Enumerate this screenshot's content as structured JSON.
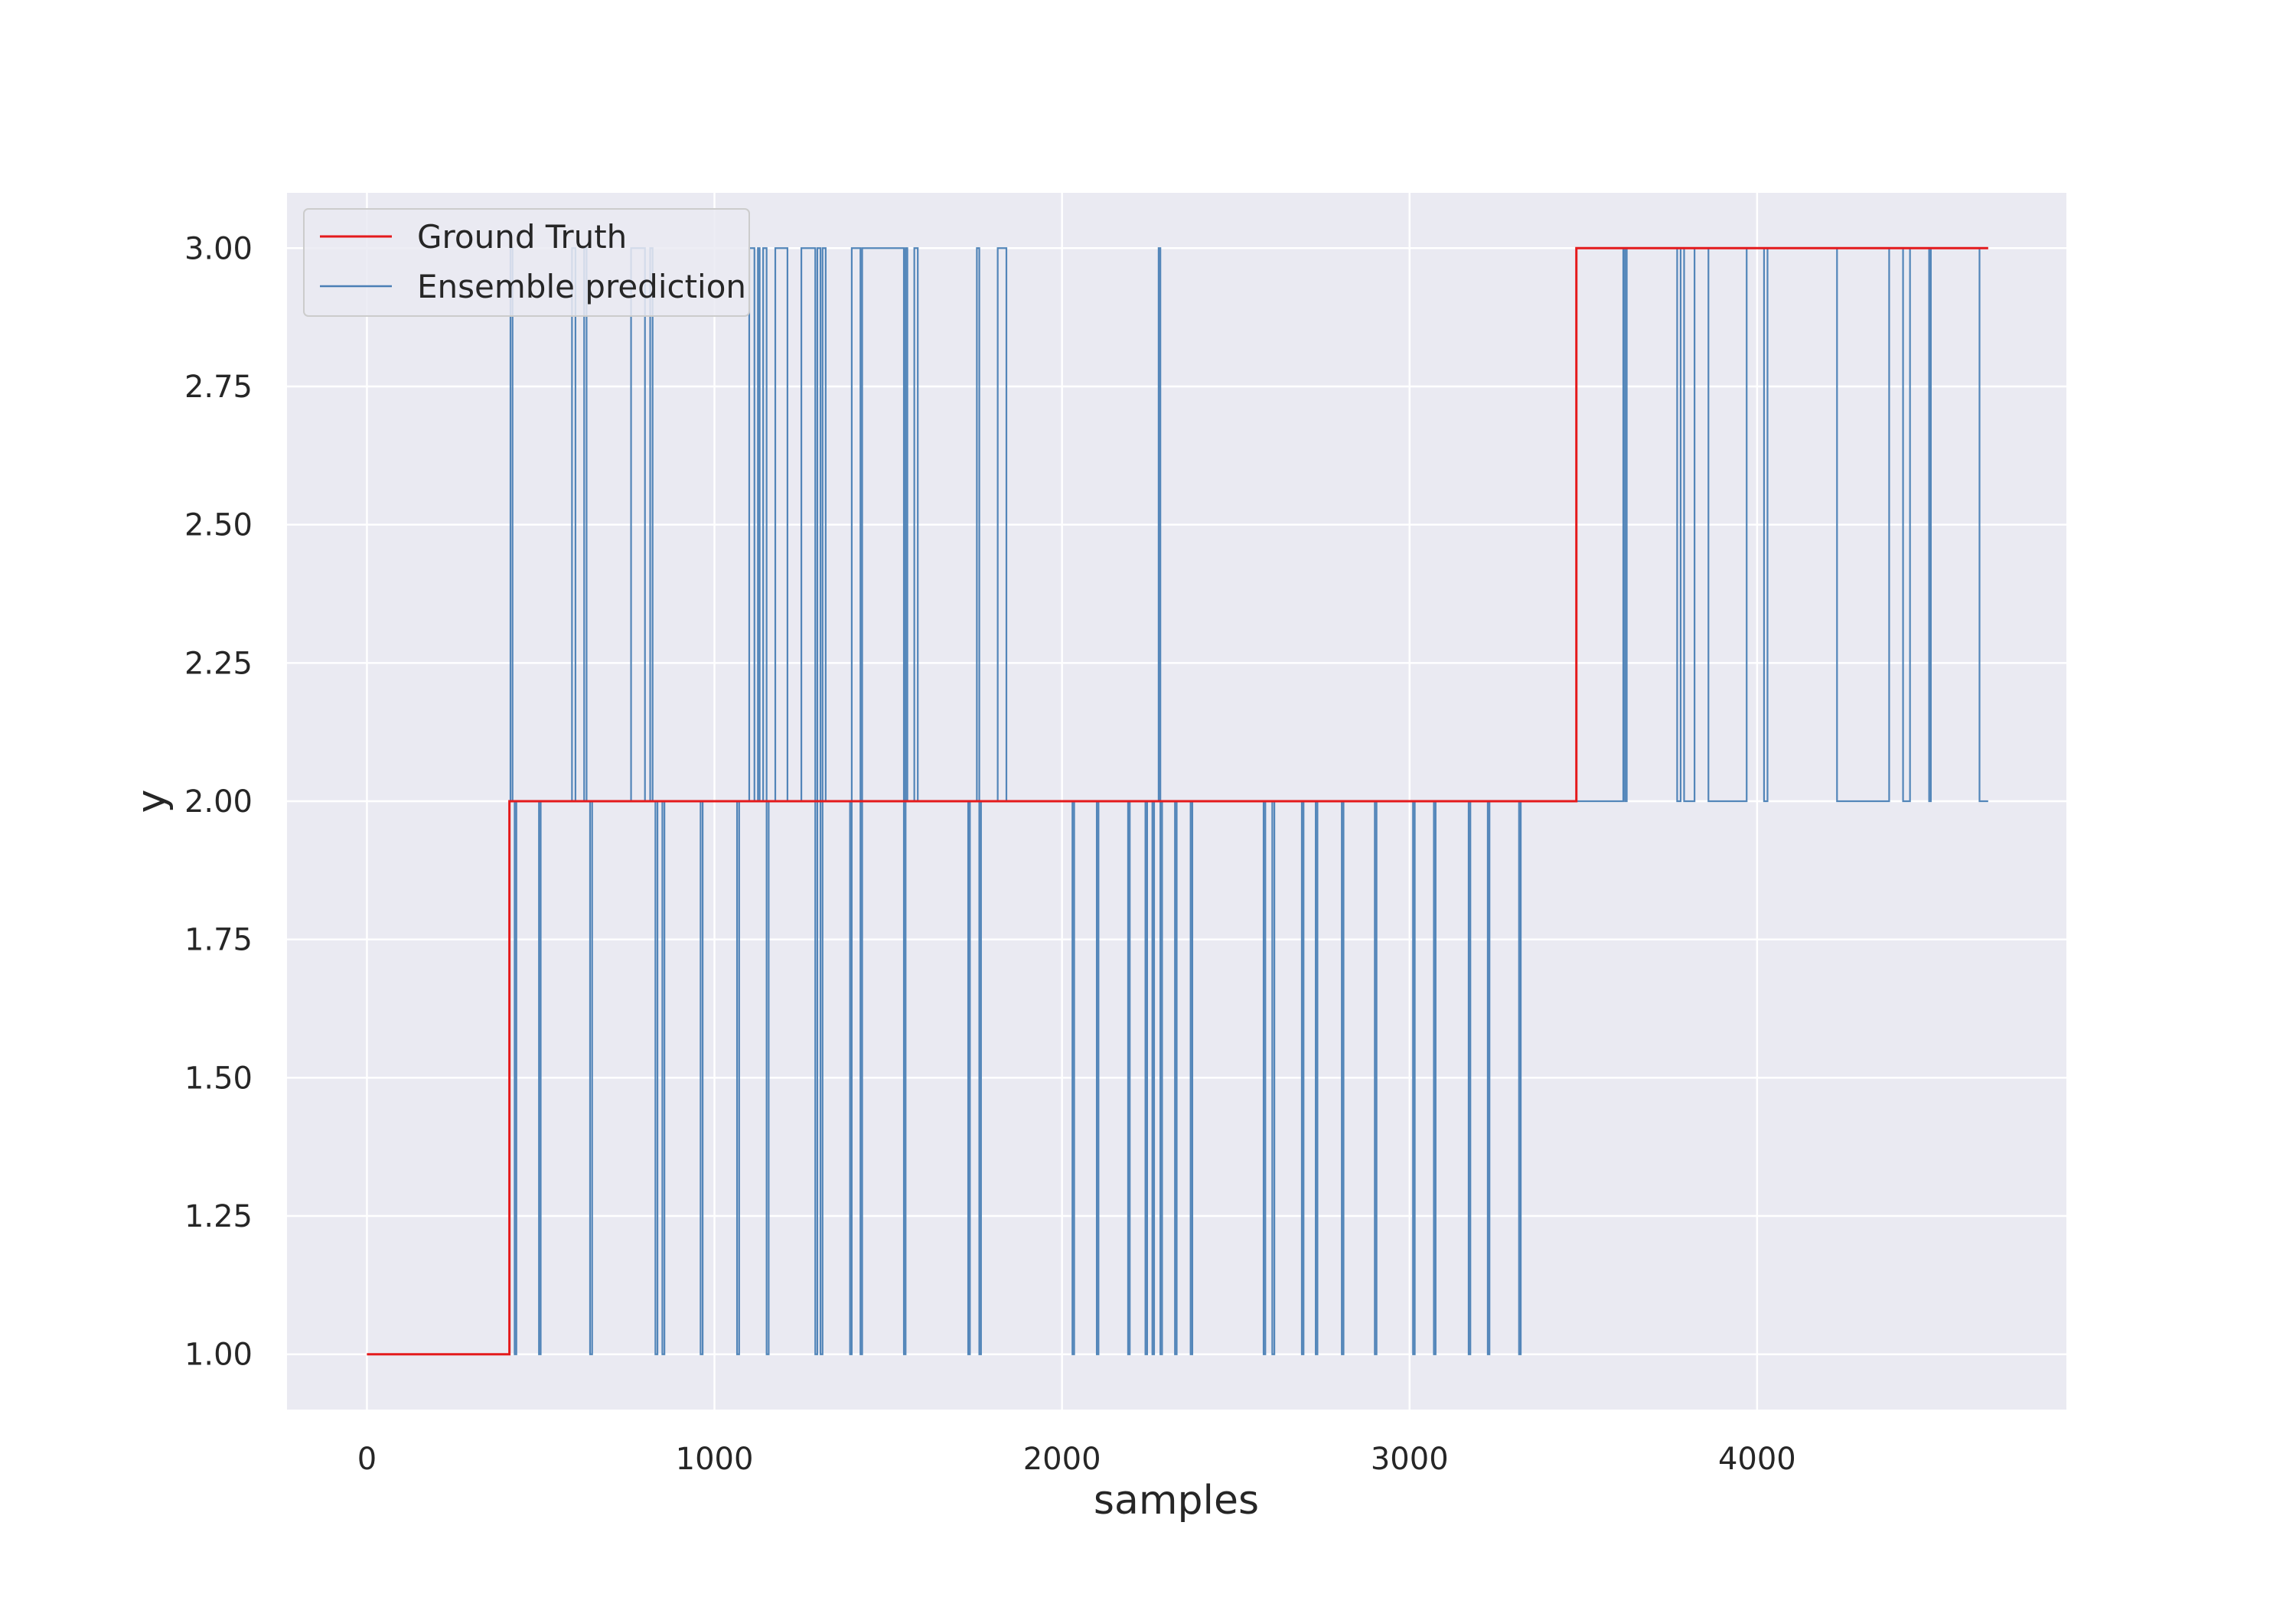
{
  "chart_data": {
    "type": "line",
    "title": "",
    "xlabel": "samples",
    "ylabel": "y",
    "xlim": [
      -230,
      4890
    ],
    "ylim": [
      0.9,
      3.1
    ],
    "xticks": [
      0,
      1000,
      2000,
      3000,
      4000
    ],
    "xtick_labels": [
      "0",
      "1000",
      "2000",
      "3000",
      "4000"
    ],
    "yticks": [
      1.0,
      1.25,
      1.5,
      1.75,
      2.0,
      2.25,
      2.5,
      2.75,
      3.0
    ],
    "ytick_labels": [
      "1.00",
      "1.25",
      "1.50",
      "1.75",
      "2.00",
      "2.25",
      "2.50",
      "2.75",
      "3.00"
    ],
    "grid": true,
    "legend_position": "top-left",
    "background_color": "#eaeaf2",
    "grid_color": "#ffffff",
    "series": [
      {
        "name": "Ground Truth",
        "color": "#e41a1c",
        "steps": [
          [
            0,
            1
          ],
          [
            410,
            2
          ],
          [
            3480,
            3
          ],
          [
            4665,
            3
          ]
        ]
      },
      {
        "name": "Ensemble prediction",
        "color": "#4a7fb5",
        "steps": [
          [
            0,
            1
          ],
          [
            410,
            2
          ],
          [
            413,
            3
          ],
          [
            419,
            2
          ],
          [
            425,
            1
          ],
          [
            430,
            2
          ],
          [
            495,
            1
          ],
          [
            500,
            2
          ],
          [
            590,
            3
          ],
          [
            600,
            2
          ],
          [
            625,
            3
          ],
          [
            632,
            2
          ],
          [
            642,
            1
          ],
          [
            648,
            2
          ],
          [
            760,
            3
          ],
          [
            800,
            2
          ],
          [
            815,
            3
          ],
          [
            822,
            2
          ],
          [
            830,
            1
          ],
          [
            836,
            2
          ],
          [
            850,
            1
          ],
          [
            856,
            2
          ],
          [
            960,
            1
          ],
          [
            966,
            2
          ],
          [
            1065,
            1
          ],
          [
            1071,
            2
          ],
          [
            1100,
            3
          ],
          [
            1115,
            2
          ],
          [
            1125,
            3
          ],
          [
            1130,
            2
          ],
          [
            1140,
            3
          ],
          [
            1150,
            1
          ],
          [
            1156,
            2
          ],
          [
            1175,
            3
          ],
          [
            1210,
            2
          ],
          [
            1250,
            3
          ],
          [
            1290,
            1
          ],
          [
            1296,
            3
          ],
          [
            1305,
            1
          ],
          [
            1311,
            3
          ],
          [
            1320,
            2
          ],
          [
            1390,
            1
          ],
          [
            1395,
            3
          ],
          [
            1420,
            1
          ],
          [
            1425,
            3
          ],
          [
            1545,
            1
          ],
          [
            1550,
            3
          ],
          [
            1555,
            2
          ],
          [
            1575,
            3
          ],
          [
            1585,
            2
          ],
          [
            1730,
            1
          ],
          [
            1735,
            2
          ],
          [
            1755,
            3
          ],
          [
            1762,
            1
          ],
          [
            1767,
            2
          ],
          [
            1815,
            3
          ],
          [
            1840,
            2
          ],
          [
            2030,
            1
          ],
          [
            2035,
            2
          ],
          [
            2100,
            1
          ],
          [
            2105,
            2
          ],
          [
            2190,
            1
          ],
          [
            2195,
            2
          ],
          [
            2240,
            1
          ],
          [
            2245,
            2
          ],
          [
            2260,
            1
          ],
          [
            2265,
            2
          ],
          [
            2278,
            3
          ],
          [
            2283,
            1
          ],
          [
            2288,
            2
          ],
          [
            2325,
            1
          ],
          [
            2330,
            2
          ],
          [
            2370,
            1
          ],
          [
            2375,
            2
          ],
          [
            2580,
            1
          ],
          [
            2585,
            2
          ],
          [
            2605,
            1
          ],
          [
            2611,
            2
          ],
          [
            2690,
            1
          ],
          [
            2695,
            2
          ],
          [
            2730,
            1
          ],
          [
            2735,
            2
          ],
          [
            2805,
            1
          ],
          [
            2810,
            2
          ],
          [
            2900,
            1
          ],
          [
            2905,
            2
          ],
          [
            3010,
            1
          ],
          [
            3015,
            2
          ],
          [
            3070,
            1
          ],
          [
            3075,
            2
          ],
          [
            3170,
            1
          ],
          [
            3175,
            2
          ],
          [
            3225,
            1
          ],
          [
            3230,
            2
          ],
          [
            3315,
            1
          ],
          [
            3320,
            2
          ],
          [
            3615,
            3
          ],
          [
            3620,
            2
          ],
          [
            3625,
            3
          ],
          [
            3640,
            3
          ],
          [
            3770,
            2
          ],
          [
            3780,
            3
          ],
          [
            3790,
            2
          ],
          [
            3820,
            3
          ],
          [
            3860,
            2
          ],
          [
            3970,
            3
          ],
          [
            4020,
            2
          ],
          [
            4030,
            3
          ],
          [
            4230,
            2
          ],
          [
            4380,
            3
          ],
          [
            4420,
            2
          ],
          [
            4440,
            3
          ],
          [
            4495,
            2
          ],
          [
            4500,
            3
          ],
          [
            4640,
            2
          ],
          [
            4665,
            2
          ]
        ]
      }
    ]
  }
}
